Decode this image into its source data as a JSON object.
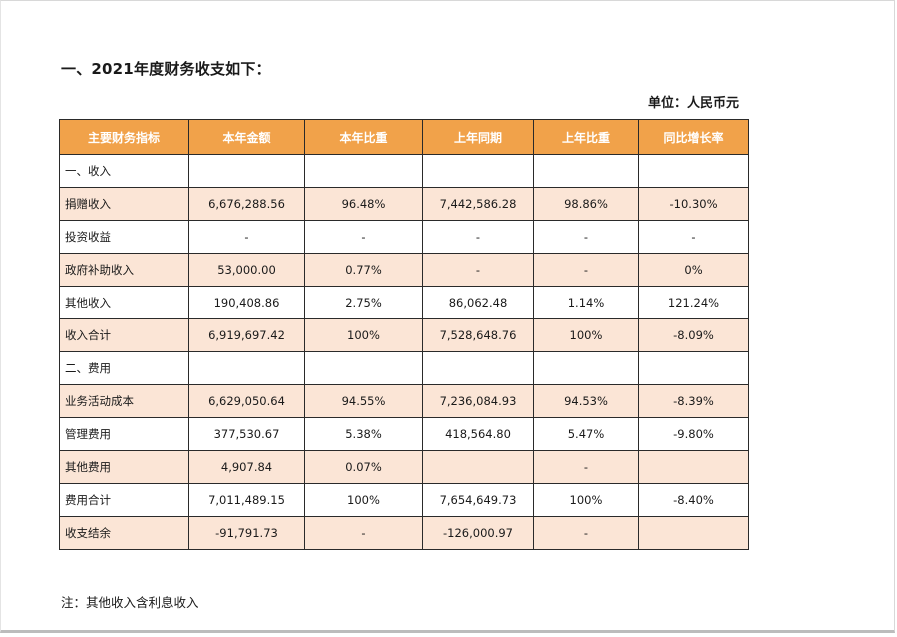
{
  "heading": "一、2021年度财务收支如下：",
  "unit": "单位：人民币元",
  "table": {
    "headers": [
      "主要财务指标",
      "本年金额",
      "本年比重",
      "上年同期",
      "上年比重",
      "同比增长率"
    ],
    "rows": [
      {
        "cells": [
          "一、收入",
          "",
          "",
          "",
          "",
          ""
        ],
        "shaded": false
      },
      {
        "cells": [
          "捐赠收入",
          "6,676,288.56",
          "96.48%",
          "7,442,586.28",
          "98.86%",
          "-10.30%"
        ],
        "shaded": true
      },
      {
        "cells": [
          "投资收益",
          "-",
          "-",
          "-",
          "-",
          "-"
        ],
        "shaded": false
      },
      {
        "cells": [
          "政府补助收入",
          "53,000.00",
          "0.77%",
          "-",
          "-",
          "0%"
        ],
        "shaded": true
      },
      {
        "cells": [
          "其他收入",
          "190,408.86",
          "2.75%",
          "86,062.48",
          "1.14%",
          "121.24%"
        ],
        "shaded": false
      },
      {
        "cells": [
          "收入合计",
          "6,919,697.42",
          "100%",
          "7,528,648.76",
          "100%",
          "-8.09%"
        ],
        "shaded": true
      },
      {
        "cells": [
          "二、费用",
          "",
          "",
          "",
          "",
          ""
        ],
        "shaded": false
      },
      {
        "cells": [
          "业务活动成本",
          "6,629,050.64",
          "94.55%",
          "7,236,084.93",
          "94.53%",
          "-8.39%"
        ],
        "shaded": true
      },
      {
        "cells": [
          "管理费用",
          "377,530.67",
          "5.38%",
          "418,564.80",
          "5.47%",
          "-9.80%"
        ],
        "shaded": false
      },
      {
        "cells": [
          "其他费用",
          "4,907.84",
          "0.07%",
          "",
          "-",
          ""
        ],
        "shaded": true
      },
      {
        "cells": [
          "费用合计",
          "7,011,489.15",
          "100%",
          "7,654,649.73",
          "100%",
          "-8.40%"
        ],
        "shaded": false
      },
      {
        "cells": [
          "收支结余",
          "-91,791.73",
          "-",
          "-126,000.97",
          "-",
          ""
        ],
        "shaded": true
      }
    ]
  },
  "note": "注：其他收入含利息收入"
}
